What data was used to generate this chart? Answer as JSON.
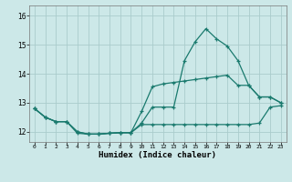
{
  "title": "",
  "xlabel": "Humidex (Indice chaleur)",
  "ylabel": "",
  "background_color": "#cce8e8",
  "grid_color": "#aacccc",
  "line_color": "#1a7a6e",
  "x_ticks": [
    0,
    1,
    2,
    3,
    4,
    5,
    6,
    7,
    8,
    9,
    10,
    11,
    12,
    13,
    14,
    15,
    16,
    17,
    18,
    19,
    20,
    21,
    22,
    23
  ],
  "ylim": [
    11.65,
    16.35
  ],
  "yticks": [
    12,
    13,
    14,
    15,
    16
  ],
  "series": [
    [
      12.8,
      12.5,
      12.35,
      12.35,
      11.95,
      11.92,
      11.92,
      11.95,
      11.97,
      11.97,
      12.3,
      12.85,
      12.85,
      12.85,
      14.45,
      15.1,
      15.55,
      15.2,
      14.95,
      14.45,
      13.6,
      13.2,
      13.2,
      13.0
    ],
    [
      12.8,
      12.5,
      12.35,
      12.35,
      12.0,
      11.92,
      11.92,
      11.95,
      11.97,
      11.97,
      12.25,
      12.25,
      12.25,
      12.25,
      12.25,
      12.25,
      12.25,
      12.25,
      12.25,
      12.25,
      12.25,
      12.3,
      12.85,
      12.9
    ],
    [
      12.8,
      12.5,
      12.35,
      12.35,
      12.0,
      11.92,
      11.92,
      11.95,
      11.97,
      11.97,
      12.7,
      13.55,
      13.65,
      13.7,
      13.75,
      13.8,
      13.85,
      13.9,
      13.95,
      13.6,
      13.6,
      13.2,
      13.2,
      13.0
    ]
  ]
}
